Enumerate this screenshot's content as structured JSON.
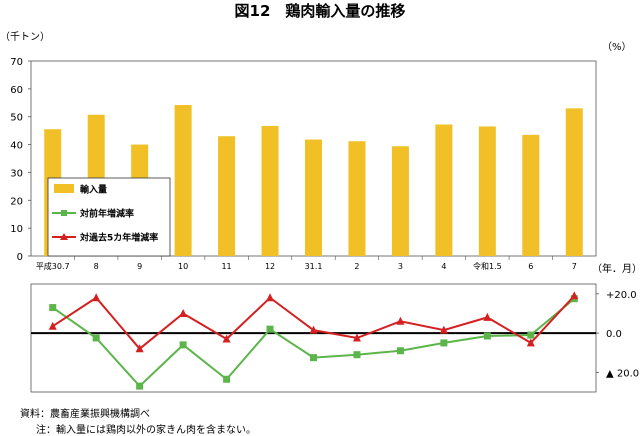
{
  "title": "図12　鶏肉輸入量の推移",
  "left_unit": "（千トン）",
  "right_unit": "（%）",
  "x_unit": "（年．月）",
  "source": "資料：農畜産業振興機構調べ",
  "note": "注：輸入量には鶏肉以外の家きん肉を含まない。",
  "colors": {
    "bar": "#f0c026",
    "yoy": "#5cb54a",
    "avg5": "#d42020",
    "zero": "#000000"
  },
  "chart_data": {
    "type": "bar",
    "categories": [
      "平成30.7",
      "8",
      "9",
      "10",
      "11",
      "12",
      "31.1",
      "2",
      "3",
      "4",
      "令和1.5",
      "6",
      "7"
    ],
    "title": "図12　鶏肉輸入量の推移",
    "bar_axis": {
      "label": "（千トン）",
      "ylim": [
        0,
        70
      ],
      "ticks": [
        0,
        10,
        20,
        30,
        40,
        50,
        60,
        70
      ]
    },
    "line_axis": {
      "label": "（%）",
      "ylim": [
        -30,
        25
      ],
      "tick_labels": [
        "+20.0",
        "0.0",
        "▲ 20.0"
      ],
      "tick_values": [
        20,
        0,
        -20
      ]
    },
    "grid": false,
    "legend_position": "left-center",
    "series": [
      {
        "name": "輸入量",
        "kind": "bar",
        "values": [
          45.5,
          50.7,
          40.0,
          54.2,
          43.0,
          46.7,
          41.8,
          41.2,
          39.4,
          47.2,
          46.5,
          43.5,
          53.0
        ]
      },
      {
        "name": "対前年増減率",
        "kind": "line",
        "values": [
          13.0,
          -2.5,
          -27.0,
          -6.0,
          -23.5,
          2.0,
          -12.5,
          -11.0,
          -9.0,
          -5.0,
          -1.5,
          -1.0,
          17.5
        ]
      },
      {
        "name": "対過去5カ年増減率",
        "kind": "line",
        "values": [
          3.5,
          18.0,
          -8.0,
          10.0,
          -3.0,
          18.0,
          1.5,
          -2.5,
          6.0,
          1.5,
          8.0,
          -5.0,
          19.0
        ]
      }
    ]
  }
}
